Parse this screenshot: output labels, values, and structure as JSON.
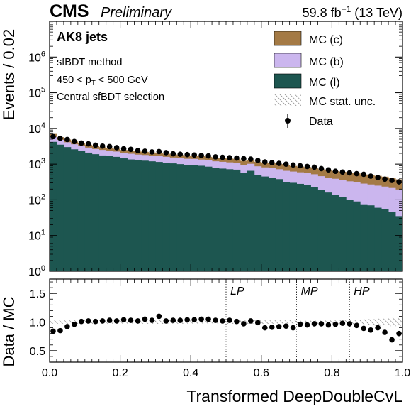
{
  "header": {
    "experiment": "CMS",
    "status": "Preliminary",
    "lumi": "59.8 fb",
    "lumi_unit_sup": "−1",
    "energy": "(13 TeV)"
  },
  "annotations": {
    "jets": "AK8 jets",
    "method": "sfBDT method",
    "pt_low": "450 < p",
    "pt_sub": "T",
    "pt_high": " < 500 GeV",
    "selection": "Central sfBDT selection"
  },
  "colors": {
    "mc_c": "#a47a45",
    "mc_b": "#cbb6ee",
    "mc_l": "#1d5650",
    "data": "#000000"
  },
  "chart_data": [
    {
      "type": "area",
      "ylabel": "Events / 0.02",
      "yscale": "log",
      "ylim": [
        1,
        10000000
      ],
      "xlim": [
        0,
        1
      ],
      "yticks": [
        {
          "value": 1,
          "base": "10",
          "exp": "0"
        },
        {
          "value": 10,
          "base": "10",
          "exp": "1"
        },
        {
          "value": 100,
          "base": "10",
          "exp": "2"
        },
        {
          "value": 1000,
          "base": "10",
          "exp": "3"
        },
        {
          "value": 10000,
          "base": "10",
          "exp": "4"
        },
        {
          "value": 100000,
          "base": "10",
          "exp": "5"
        },
        {
          "value": 1000000,
          "base": "10",
          "exp": "6"
        }
      ],
      "bin_edges": [
        0,
        0.02,
        0.04,
        0.06,
        0.08,
        0.1,
        0.12,
        0.14,
        0.16,
        0.18,
        0.2,
        0.22,
        0.24,
        0.26,
        0.28,
        0.3,
        0.32,
        0.34,
        0.36,
        0.38,
        0.4,
        0.42,
        0.44,
        0.46,
        0.48,
        0.5,
        0.52,
        0.54,
        0.56,
        0.58,
        0.6,
        0.62,
        0.64,
        0.66,
        0.68,
        0.7,
        0.72,
        0.74,
        0.76,
        0.78,
        0.8,
        0.82,
        0.84,
        0.86,
        0.88,
        0.9,
        0.92,
        0.94,
        0.96,
        0.98,
        1.0
      ],
      "legend": {
        "position": "top-right",
        "entries": [
          {
            "label": "MC (c)",
            "kind": "fill",
            "key": "mc_c"
          },
          {
            "label": "MC (b)",
            "kind": "fill",
            "key": "mc_b"
          },
          {
            "label": "MC (l)",
            "kind": "fill",
            "key": "mc_l"
          },
          {
            "label": "MC stat. unc.",
            "kind": "hatch",
            "key": "unc"
          },
          {
            "label": "Data",
            "kind": "marker",
            "key": "data"
          }
        ]
      },
      "series": [
        {
          "name": "MC (l)",
          "values": [
            4200,
            3500,
            3000,
            2600,
            2300,
            2100,
            1900,
            1750,
            1700,
            1600,
            1450,
            1350,
            1300,
            1250,
            1200,
            1150,
            1100,
            1050,
            1000,
            950,
            950,
            900,
            850,
            780,
            750,
            720,
            700,
            560,
            650,
            500,
            450,
            420,
            380,
            320,
            300,
            280,
            260,
            230,
            190,
            160,
            140,
            120,
            100,
            90,
            75,
            70,
            60,
            55,
            45,
            35
          ]
        },
        {
          "name": "MC (b)",
          "values": [
            1600,
            1300,
            1100,
            1000,
            900,
            800,
            750,
            750,
            700,
            650,
            600,
            600,
            550,
            550,
            540,
            520,
            500,
            480,
            470,
            460,
            450,
            440,
            430,
            420,
            410,
            400,
            400,
            380,
            370,
            370,
            360,
            350,
            340,
            330,
            320,
            310,
            300,
            290,
            270,
            260,
            250,
            240,
            230,
            220,
            210,
            200,
            190,
            180,
            170,
            160
          ]
        },
        {
          "name": "MC (c)",
          "values": [
            1200,
            900,
            800,
            700,
            650,
            600,
            550,
            500,
            480,
            460,
            440,
            420,
            410,
            400,
            380,
            370,
            360,
            350,
            340,
            340,
            330,
            330,
            320,
            320,
            310,
            310,
            300,
            300,
            300,
            290,
            290,
            280,
            280,
            280,
            270,
            270,
            270,
            260,
            260,
            250,
            250,
            250,
            240,
            240,
            230,
            230,
            220,
            210,
            200,
            180
          ]
        },
        {
          "name": "Data",
          "values": [
            5900,
            5300,
            4900,
            4300,
            3900,
            3700,
            3400,
            3200,
            3100,
            2900,
            2700,
            2600,
            2400,
            2300,
            2200,
            2250,
            2100,
            1950,
            1900,
            1850,
            1800,
            1750,
            1700,
            1600,
            1550,
            1520,
            1480,
            1420,
            1380,
            1270,
            1150,
            1100,
            1050,
            1000,
            950,
            900,
            860,
            820,
            750,
            690,
            630,
            600,
            570,
            540,
            520,
            460,
            420,
            380,
            350,
            320
          ]
        }
      ]
    },
    {
      "type": "scatter",
      "xlabel": "Transformed DeepDoubleCvL",
      "ylabel": "Data / MC",
      "xlim": [
        0,
        1
      ],
      "ylim": [
        0.3,
        1.75
      ],
      "yticks": [
        "0.5",
        "1.0",
        "1.5"
      ],
      "xticks": [
        "0.0",
        "0.2",
        "0.4",
        "0.6",
        "0.8",
        "1.0"
      ],
      "x": [
        0.01,
        0.03,
        0.05,
        0.07,
        0.09,
        0.11,
        0.13,
        0.15,
        0.17,
        0.19,
        0.21,
        0.23,
        0.25,
        0.27,
        0.29,
        0.31,
        0.33,
        0.35,
        0.37,
        0.39,
        0.41,
        0.43,
        0.45,
        0.47,
        0.49,
        0.51,
        0.53,
        0.55,
        0.57,
        0.59,
        0.61,
        0.63,
        0.65,
        0.67,
        0.69,
        0.71,
        0.73,
        0.75,
        0.77,
        0.79,
        0.81,
        0.83,
        0.85,
        0.87,
        0.89,
        0.91,
        0.93,
        0.95,
        0.97,
        0.99
      ],
      "y": [
        0.84,
        0.85,
        0.92,
        0.96,
        1.01,
        1.02,
        1.01,
        1.02,
        1.03,
        1.02,
        1.04,
        1.03,
        1.02,
        1.05,
        1.03,
        1.1,
        1.02,
        1.03,
        1.03,
        1.04,
        1.04,
        1.05,
        1.05,
        1.03,
        1.02,
        1.03,
        1.01,
        0.97,
        1.02,
        0.99,
        0.9,
        0.91,
        0.92,
        0.93,
        0.9,
        0.96,
        0.95,
        0.97,
        0.97,
        0.95,
        0.96,
        0.98,
        0.97,
        0.94,
        0.89,
        0.86,
        0.9,
        0.82,
        0.69,
        0.8
      ],
      "uncertainty_band": [
        0.03,
        0.03,
        0.03,
        0.03,
        0.03,
        0.03,
        0.03,
        0.03,
        0.03,
        0.03,
        0.03,
        0.03,
        0.03,
        0.03,
        0.03,
        0.03,
        0.03,
        0.03,
        0.03,
        0.03,
        0.03,
        0.03,
        0.03,
        0.03,
        0.03,
        0.03,
        0.03,
        0.03,
        0.03,
        0.03,
        0.03,
        0.03,
        0.03,
        0.03,
        0.03,
        0.03,
        0.03,
        0.03,
        0.03,
        0.03,
        0.03,
        0.03,
        0.04,
        0.04,
        0.05,
        0.05,
        0.06,
        0.06,
        0.07,
        0.07
      ],
      "reference_line": 1.0,
      "regions": [
        {
          "label": "LP",
          "x": 0.5
        },
        {
          "label": "MP",
          "x": 0.7
        },
        {
          "label": "HP",
          "x": 0.85
        }
      ]
    }
  ]
}
